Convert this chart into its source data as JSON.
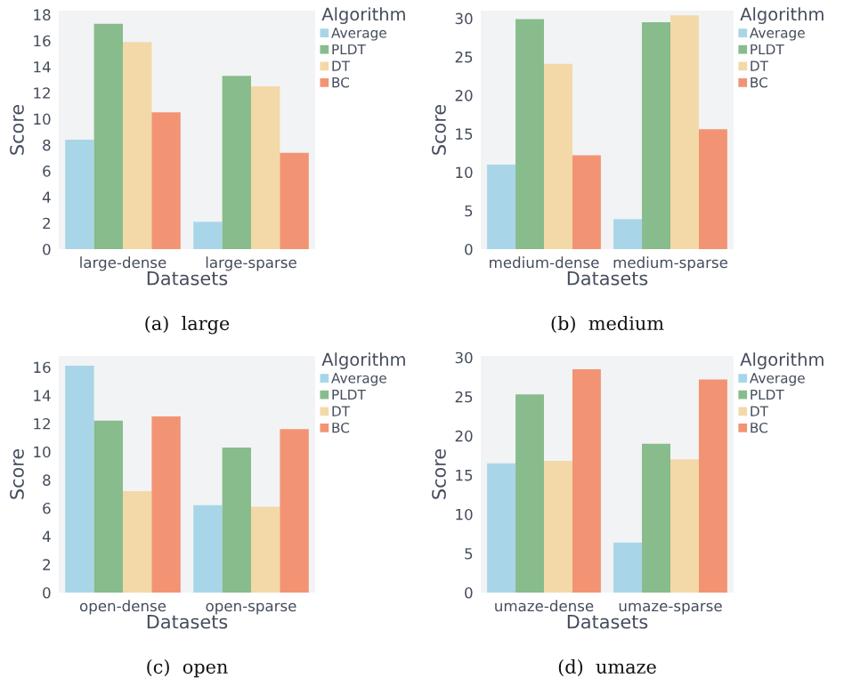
{
  "chart_data": [
    {
      "type": "bar",
      "title": "(a)  large",
      "xlabel": "Datasets",
      "ylabel": "Score",
      "legend_title": "Algorithm",
      "legend": "top right",
      "grid": false,
      "categories": [
        "large-dense",
        "large-sparse"
      ],
      "ylim": [
        0,
        18.3
      ],
      "yticks": [
        0,
        2,
        4,
        6,
        8,
        10,
        12,
        14,
        16,
        18
      ],
      "series": [
        {
          "name": "Average",
          "color": "#a8d6e8",
          "values": [
            8.4,
            2.1
          ]
        },
        {
          "name": "PLDT",
          "color": "#88bc8c",
          "values": [
            17.3,
            13.3
          ]
        },
        {
          "name": "DT",
          "color": "#f3d9a8",
          "values": [
            15.9,
            12.5
          ]
        },
        {
          "name": "BC",
          "color": "#f29474",
          "values": [
            10.5,
            7.4
          ]
        }
      ]
    },
    {
      "type": "bar",
      "title": "(b)  medium",
      "xlabel": "Datasets",
      "ylabel": "Score",
      "legend_title": "Algorithm",
      "legend": "top right",
      "grid": false,
      "categories": [
        "medium-dense",
        "medium-sparse"
      ],
      "ylim": [
        0,
        31
      ],
      "yticks": [
        0,
        5,
        10,
        15,
        20,
        25,
        30
      ],
      "series": [
        {
          "name": "Average",
          "color": "#a8d6e8",
          "values": [
            11.0,
            3.9
          ]
        },
        {
          "name": "PLDT",
          "color": "#88bc8c",
          "values": [
            29.9,
            29.5
          ]
        },
        {
          "name": "DT",
          "color": "#f3d9a8",
          "values": [
            24.1,
            30.4
          ]
        },
        {
          "name": "BC",
          "color": "#f29474",
          "values": [
            12.2,
            15.6
          ]
        }
      ]
    },
    {
      "type": "bar",
      "title": "(c)  open",
      "xlabel": "Datasets",
      "ylabel": "Score",
      "legend_title": "Algorithm",
      "legend": "top right",
      "grid": false,
      "categories": [
        "open-dense",
        "open-sparse"
      ],
      "ylim": [
        0,
        16.8
      ],
      "yticks": [
        0,
        2,
        4,
        6,
        8,
        10,
        12,
        14,
        16
      ],
      "series": [
        {
          "name": "Average",
          "color": "#a8d6e8",
          "values": [
            16.1,
            6.2
          ]
        },
        {
          "name": "PLDT",
          "color": "#88bc8c",
          "values": [
            12.2,
            10.3
          ]
        },
        {
          "name": "DT",
          "color": "#f3d9a8",
          "values": [
            7.2,
            6.1
          ]
        },
        {
          "name": "BC",
          "color": "#f29474",
          "values": [
            12.5,
            11.6
          ]
        }
      ]
    },
    {
      "type": "bar",
      "title": "(d)  umaze",
      "xlabel": "Datasets",
      "ylabel": "Score",
      "legend_title": "Algorithm",
      "legend": "top right",
      "grid": false,
      "categories": [
        "umaze-dense",
        "umaze-sparse"
      ],
      "ylim": [
        0,
        30.2
      ],
      "yticks": [
        0,
        5,
        10,
        15,
        20,
        25,
        30
      ],
      "series": [
        {
          "name": "Average",
          "color": "#a8d6e8",
          "values": [
            16.5,
            6.4
          ]
        },
        {
          "name": "PLDT",
          "color": "#88bc8c",
          "values": [
            25.3,
            19.0
          ]
        },
        {
          "name": "DT",
          "color": "#f3d9a8",
          "values": [
            16.8,
            17.0
          ]
        },
        {
          "name": "BC",
          "color": "#f29474",
          "values": [
            28.5,
            27.2
          ]
        }
      ]
    }
  ]
}
